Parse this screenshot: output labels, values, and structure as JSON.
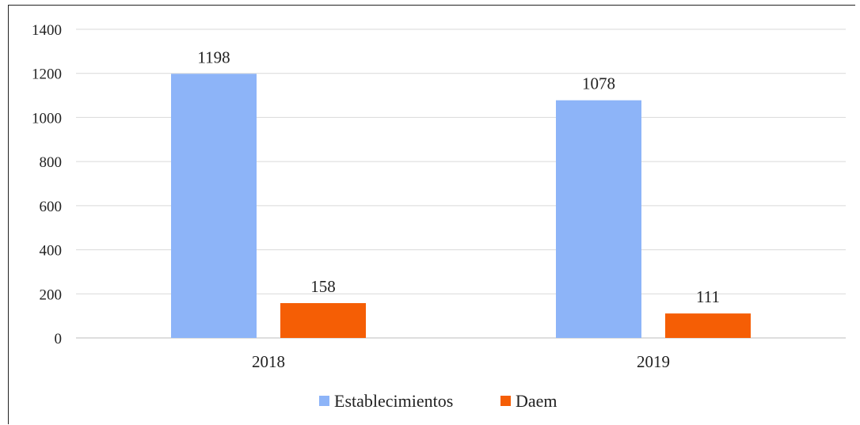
{
  "chart_data": {
    "type": "bar",
    "categories": [
      "2018",
      "2019"
    ],
    "series": [
      {
        "name": "Establecimientos",
        "values": [
          1198,
          1078
        ],
        "color": "#8db4f8"
      },
      {
        "name": "Daem",
        "values": [
          158,
          111
        ],
        "color": "#f55e05"
      }
    ],
    "ylim": [
      0,
      1400
    ],
    "yticks": [
      "0",
      "200",
      "400",
      "600",
      "800",
      "1000",
      "1200",
      "1400"
    ],
    "title": "",
    "xlabel": "",
    "ylabel": "",
    "grid": true,
    "legend": "bottom"
  }
}
